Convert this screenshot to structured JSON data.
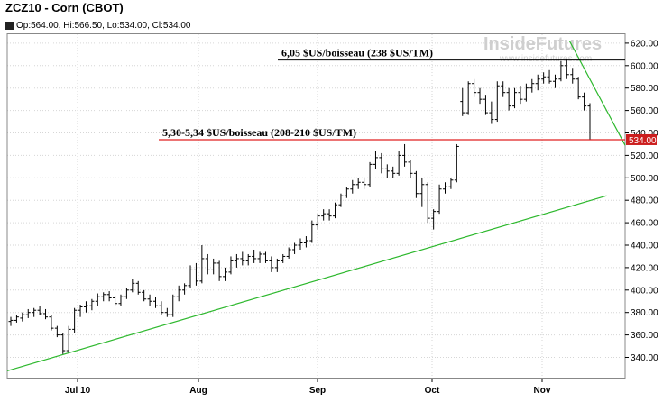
{
  "window": {
    "title": "ZCZ10 - Corn (CBOT)",
    "ohlc": "Op:564.00, Hi:566.50, Lo:534.00, Cl:534.00"
  },
  "watermark": {
    "brand": "InsideFutures",
    "url": "www.insidefutures.com"
  },
  "colors": {
    "red_line": "#e02020",
    "green_line": "#2db82d",
    "price_tag_bg": "#cc1f1f"
  },
  "chart_data": {
    "type": "ohlc",
    "xlabel": "",
    "ylabel": "",
    "ylim": [
      320,
      630
    ],
    "x_ticks": [
      "Jul 10",
      "Aug",
      "Sep",
      "Oct",
      "Nov"
    ],
    "y_ticks": [
      340,
      360,
      380,
      400,
      420,
      440,
      460,
      480,
      500,
      520,
      540,
      560,
      580,
      600,
      620
    ],
    "grid": true,
    "last_price_label": "534.00",
    "annotations": [
      {
        "text": "6,05 $US/boisseau (238 $US/TM)",
        "level": 605
      },
      {
        "text": "5,30-5,34 $US/boisseau (208-210 $US/TM)",
        "level": 534
      }
    ],
    "trendlines": [
      {
        "name": "support",
        "color": "#2db82d",
        "from": [
          0,
          328
        ],
        "to": [
          97,
          484
        ]
      },
      {
        "name": "resistance",
        "color": "#2db82d",
        "from": [
          91,
          622
        ],
        "to": [
          100,
          529
        ]
      }
    ],
    "bars": [
      {
        "o": 372,
        "h": 376,
        "l": 368,
        "c": 373
      },
      {
        "o": 373,
        "h": 378,
        "l": 371,
        "c": 376
      },
      {
        "o": 375,
        "h": 380,
        "l": 372,
        "c": 378
      },
      {
        "o": 378,
        "h": 383,
        "l": 375,
        "c": 380
      },
      {
        "o": 380,
        "h": 384,
        "l": 376,
        "c": 382
      },
      {
        "o": 382,
        "h": 386,
        "l": 378,
        "c": 379
      },
      {
        "o": 379,
        "h": 383,
        "l": 374,
        "c": 376
      },
      {
        "o": 376,
        "h": 378,
        "l": 364,
        "c": 366
      },
      {
        "o": 366,
        "h": 368,
        "l": 358,
        "c": 360
      },
      {
        "o": 360,
        "h": 362,
        "l": 343,
        "c": 346
      },
      {
        "o": 346,
        "h": 368,
        "l": 344,
        "c": 365
      },
      {
        "o": 365,
        "h": 384,
        "l": 362,
        "c": 382
      },
      {
        "o": 382,
        "h": 387,
        "l": 376,
        "c": 385
      },
      {
        "o": 385,
        "h": 390,
        "l": 380,
        "c": 386
      },
      {
        "o": 386,
        "h": 392,
        "l": 382,
        "c": 390
      },
      {
        "o": 390,
        "h": 397,
        "l": 386,
        "c": 394
      },
      {
        "o": 394,
        "h": 398,
        "l": 390,
        "c": 396
      },
      {
        "o": 396,
        "h": 399,
        "l": 390,
        "c": 393
      },
      {
        "o": 393,
        "h": 395,
        "l": 386,
        "c": 388
      },
      {
        "o": 388,
        "h": 396,
        "l": 386,
        "c": 394
      },
      {
        "o": 394,
        "h": 402,
        "l": 392,
        "c": 400
      },
      {
        "o": 400,
        "h": 410,
        "l": 398,
        "c": 406
      },
      {
        "o": 406,
        "h": 408,
        "l": 396,
        "c": 398
      },
      {
        "o": 398,
        "h": 400,
        "l": 390,
        "c": 392
      },
      {
        "o": 392,
        "h": 396,
        "l": 386,
        "c": 390
      },
      {
        "o": 390,
        "h": 394,
        "l": 384,
        "c": 386
      },
      {
        "o": 386,
        "h": 390,
        "l": 378,
        "c": 380
      },
      {
        "o": 380,
        "h": 384,
        "l": 376,
        "c": 378
      },
      {
        "o": 378,
        "h": 396,
        "l": 376,
        "c": 394
      },
      {
        "o": 394,
        "h": 404,
        "l": 390,
        "c": 400
      },
      {
        "o": 400,
        "h": 406,
        "l": 396,
        "c": 404
      },
      {
        "o": 404,
        "h": 422,
        "l": 402,
        "c": 418
      },
      {
        "o": 418,
        "h": 424,
        "l": 404,
        "c": 408
      },
      {
        "o": 408,
        "h": 440,
        "l": 406,
        "c": 428
      },
      {
        "o": 428,
        "h": 432,
        "l": 414,
        "c": 418
      },
      {
        "o": 418,
        "h": 428,
        "l": 414,
        "c": 424
      },
      {
        "o": 424,
        "h": 426,
        "l": 408,
        "c": 412
      },
      {
        "o": 412,
        "h": 420,
        "l": 408,
        "c": 416
      },
      {
        "o": 416,
        "h": 430,
        "l": 414,
        "c": 426
      },
      {
        "o": 426,
        "h": 432,
        "l": 420,
        "c": 428
      },
      {
        "o": 428,
        "h": 434,
        "l": 422,
        "c": 426
      },
      {
        "o": 426,
        "h": 432,
        "l": 422,
        "c": 430
      },
      {
        "o": 430,
        "h": 436,
        "l": 424,
        "c": 428
      },
      {
        "o": 428,
        "h": 434,
        "l": 424,
        "c": 432
      },
      {
        "o": 432,
        "h": 434,
        "l": 424,
        "c": 426
      },
      {
        "o": 426,
        "h": 430,
        "l": 416,
        "c": 420
      },
      {
        "o": 420,
        "h": 428,
        "l": 416,
        "c": 426
      },
      {
        "o": 426,
        "h": 432,
        "l": 424,
        "c": 430
      },
      {
        "o": 430,
        "h": 438,
        "l": 428,
        "c": 436
      },
      {
        "o": 436,
        "h": 442,
        "l": 432,
        "c": 440
      },
      {
        "o": 440,
        "h": 446,
        "l": 436,
        "c": 442
      },
      {
        "o": 442,
        "h": 448,
        "l": 438,
        "c": 444
      },
      {
        "o": 444,
        "h": 462,
        "l": 442,
        "c": 458
      },
      {
        "o": 458,
        "h": 468,
        "l": 454,
        "c": 466
      },
      {
        "o": 466,
        "h": 472,
        "l": 462,
        "c": 468
      },
      {
        "o": 468,
        "h": 472,
        "l": 462,
        "c": 466
      },
      {
        "o": 466,
        "h": 478,
        "l": 464,
        "c": 476
      },
      {
        "o": 476,
        "h": 486,
        "l": 474,
        "c": 484
      },
      {
        "o": 484,
        "h": 492,
        "l": 482,
        "c": 490
      },
      {
        "o": 490,
        "h": 498,
        "l": 486,
        "c": 494
      },
      {
        "o": 494,
        "h": 500,
        "l": 490,
        "c": 496
      },
      {
        "o": 496,
        "h": 500,
        "l": 490,
        "c": 494
      },
      {
        "o": 494,
        "h": 514,
        "l": 492,
        "c": 512
      },
      {
        "o": 512,
        "h": 524,
        "l": 508,
        "c": 518
      },
      {
        "o": 518,
        "h": 522,
        "l": 504,
        "c": 508
      },
      {
        "o": 508,
        "h": 512,
        "l": 500,
        "c": 506
      },
      {
        "o": 506,
        "h": 510,
        "l": 500,
        "c": 504
      },
      {
        "o": 504,
        "h": 524,
        "l": 502,
        "c": 520
      },
      {
        "o": 520,
        "h": 530,
        "l": 510,
        "c": 514
      },
      {
        "o": 514,
        "h": 516,
        "l": 500,
        "c": 504
      },
      {
        "o": 504,
        "h": 506,
        "l": 482,
        "c": 486
      },
      {
        "o": 486,
        "h": 500,
        "l": 474,
        "c": 494
      },
      {
        "o": 494,
        "h": 496,
        "l": 460,
        "c": 464
      },
      {
        "o": 464,
        "h": 472,
        "l": 454,
        "c": 470
      },
      {
        "o": 470,
        "h": 494,
        "l": 468,
        "c": 490
      },
      {
        "o": 490,
        "h": 496,
        "l": 486,
        "c": 492
      },
      {
        "o": 492,
        "h": 500,
        "l": 490,
        "c": 498
      },
      {
        "o": 498,
        "h": 530,
        "l": 496,
        "c": 528
      },
      {
        "o": 568,
        "h": 580,
        "l": 555,
        "c": 558
      },
      {
        "o": 558,
        "h": 586,
        "l": 556,
        "c": 584
      },
      {
        "o": 584,
        "h": 588,
        "l": 572,
        "c": 576
      },
      {
        "o": 576,
        "h": 580,
        "l": 566,
        "c": 570
      },
      {
        "o": 570,
        "h": 574,
        "l": 556,
        "c": 558
      },
      {
        "o": 558,
        "h": 568,
        "l": 548,
        "c": 552
      },
      {
        "o": 552,
        "h": 586,
        "l": 550,
        "c": 582
      },
      {
        "o": 582,
        "h": 586,
        "l": 572,
        "c": 576
      },
      {
        "o": 576,
        "h": 580,
        "l": 560,
        "c": 564
      },
      {
        "o": 564,
        "h": 580,
        "l": 562,
        "c": 576
      },
      {
        "o": 576,
        "h": 582,
        "l": 566,
        "c": 570
      },
      {
        "o": 570,
        "h": 584,
        "l": 568,
        "c": 580
      },
      {
        "o": 580,
        "h": 588,
        "l": 576,
        "c": 584
      },
      {
        "o": 584,
        "h": 592,
        "l": 578,
        "c": 588
      },
      {
        "o": 588,
        "h": 594,
        "l": 584,
        "c": 590
      },
      {
        "o": 590,
        "h": 596,
        "l": 584,
        "c": 586
      },
      {
        "o": 586,
        "h": 592,
        "l": 580,
        "c": 588
      },
      {
        "o": 588,
        "h": 604,
        "l": 586,
        "c": 600
      },
      {
        "o": 600,
        "h": 606,
        "l": 588,
        "c": 592
      },
      {
        "o": 592,
        "h": 598,
        "l": 584,
        "c": 588
      },
      {
        "o": 588,
        "h": 590,
        "l": 570,
        "c": 572
      },
      {
        "o": 572,
        "h": 576,
        "l": 560,
        "c": 564
      },
      {
        "o": 564,
        "h": 566.5,
        "l": 534,
        "c": 534
      }
    ]
  }
}
